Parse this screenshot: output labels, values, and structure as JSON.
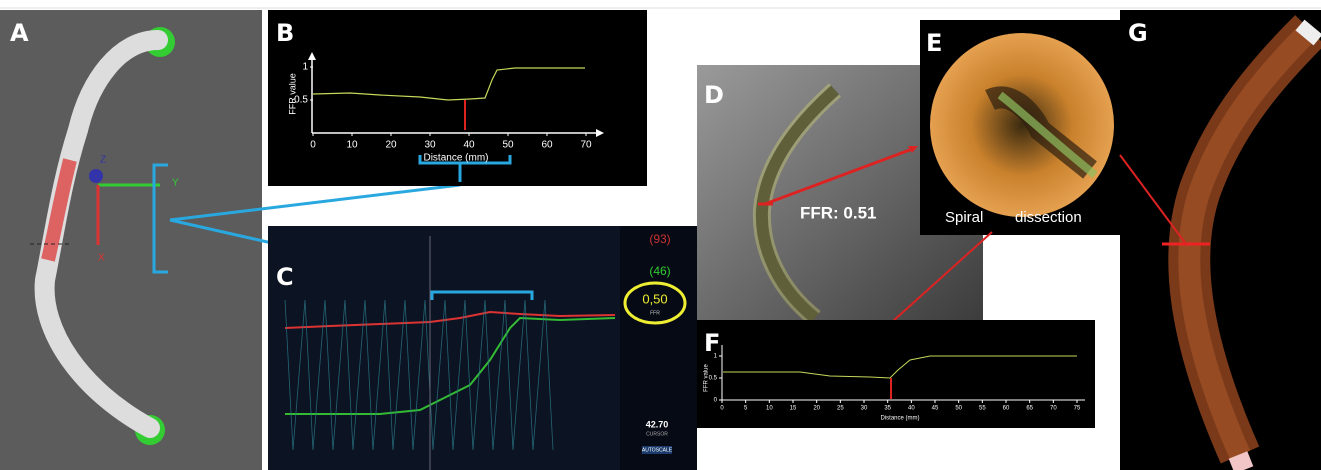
{
  "panels": {
    "A": {
      "label": "A",
      "axis_labels": [
        "Y",
        "Z",
        "X"
      ]
    },
    "B": {
      "label": "B",
      "y_axis_label": "FFR value",
      "x_axis_label": "Distance (mm)",
      "xticks": [
        0,
        10,
        20,
        30,
        40,
        50,
        60,
        70
      ],
      "yticks": [
        0.5,
        1
      ]
    },
    "C": {
      "label": "C",
      "readouts": [
        "(93)",
        "(46)"
      ],
      "ffr_value": "0,50",
      "ffr_caption": "FFR",
      "cursor_value": "42.70",
      "cursor_caption": "CURSOR",
      "button": "AUTOSCALE"
    },
    "D": {
      "label": "D",
      "annotation": "FFR: 0.51"
    },
    "E": {
      "label": "E",
      "caption_left": "Spiral",
      "caption_right": "dissection"
    },
    "F": {
      "label": "F",
      "y_axis_label": "FFR value",
      "x_axis_label": "Distance (mm)",
      "xticks": [
        0,
        5,
        10,
        15,
        20,
        25,
        30,
        35,
        40,
        45,
        50,
        55,
        60,
        65,
        70,
        75
      ],
      "yticks": [
        0,
        0.5,
        1
      ]
    },
    "G": {
      "label": "G"
    }
  }
}
